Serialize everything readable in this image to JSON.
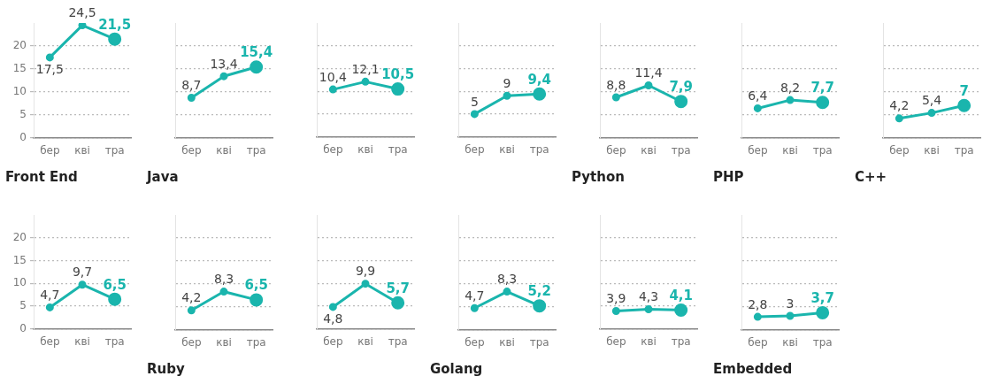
{
  "chart_data": [
    {
      "type": "line",
      "title": "Front End",
      "categories": [
        "бер",
        "кві",
        "тра"
      ],
      "values": [
        17.5,
        24.5,
        21.5
      ],
      "value_labels": [
        "17,5",
        "24,5",
        "21,5"
      ],
      "color": "#1ab5ad",
      "ylim": [
        0,
        25
      ],
      "yticks": [
        0,
        5,
        10,
        15,
        20
      ],
      "grid": "y",
      "marker": "circle",
      "legend": false
    },
    {
      "type": "line",
      "title": "Java",
      "categories": [
        "бер",
        "кві",
        "тра"
      ],
      "values": [
        8.7,
        13.4,
        15.4
      ],
      "value_labels": [
        "8,7",
        "13,4",
        "15,4"
      ],
      "color": "#1ab5ad",
      "ylim": [
        0,
        25
      ],
      "yticks": [
        0,
        5,
        10,
        15,
        20
      ],
      "grid": "y",
      "marker": "circle",
      "legend": false,
      "tick_labels": "x"
    },
    {
      "type": "line",
      "categories": [
        "бер",
        "кві",
        "тра"
      ],
      "values": [
        10.4,
        12.1,
        10.5
      ],
      "value_labels": [
        "10,4",
        "12,1",
        "10,5"
      ],
      "color": "#1ab5ad",
      "ylim": [
        0,
        25
      ],
      "yticks": [
        0,
        5,
        10,
        15,
        20
      ],
      "grid": "y",
      "marker": "circle",
      "legend": false,
      "tick_labels": "x"
    },
    {
      "type": "line",
      "categories": [
        "бер",
        "кві",
        "тра"
      ],
      "values": [
        5,
        9,
        9.4
      ],
      "value_labels": [
        "5",
        "9",
        "9,4"
      ],
      "color": "#1ab5ad",
      "ylim": [
        0,
        25
      ],
      "yticks": [
        0,
        5,
        10,
        15,
        20
      ],
      "grid": "y",
      "marker": "circle",
      "legend": false,
      "tick_labels": "x"
    },
    {
      "type": "line",
      "title": "Python",
      "categories": [
        "бер",
        "кві",
        "тра"
      ],
      "values": [
        8.8,
        11.4,
        7.9
      ],
      "value_labels": [
        "8,8",
        "11,4",
        "7,9"
      ],
      "color": "#1ab5ad",
      "ylim": [
        0,
        25
      ],
      "yticks": [
        0,
        5,
        10,
        15,
        20
      ],
      "grid": "y",
      "marker": "circle",
      "legend": false,
      "tick_labels": "x"
    },
    {
      "type": "line",
      "title": "PHP",
      "categories": [
        "бер",
        "кві",
        "тра"
      ],
      "values": [
        6.4,
        8.2,
        7.7
      ],
      "value_labels": [
        "6,4",
        "8,2",
        "7,7"
      ],
      "color": "#1ab5ad",
      "ylim": [
        0,
        25
      ],
      "yticks": [
        0,
        5,
        10,
        15,
        20
      ],
      "grid": "y",
      "marker": "circle",
      "legend": false,
      "tick_labels": "x"
    },
    {
      "type": "line",
      "title": "C++",
      "categories": [
        "бер",
        "кві",
        "тра"
      ],
      "values": [
        4.2,
        5.4,
        7
      ],
      "value_labels": [
        "4,2",
        "5,4",
        "7"
      ],
      "color": "#1ab5ad",
      "ylim": [
        0,
        25
      ],
      "yticks": [
        0,
        5,
        10,
        15,
        20
      ],
      "grid": "y",
      "marker": "circle",
      "legend": false,
      "tick_labels": "x"
    },
    {
      "type": "line",
      "categories": [
        "бер",
        "кві",
        "тра"
      ],
      "values": [
        4.7,
        9.7,
        6.5
      ],
      "value_labels": [
        "4,7",
        "9,7",
        "6,5"
      ],
      "color": "#1ab5ad",
      "ylim": [
        0,
        25
      ],
      "yticks": [
        0,
        5,
        10,
        15,
        20
      ],
      "grid": "y",
      "marker": "circle",
      "legend": false
    },
    {
      "type": "line",
      "title": "Ruby",
      "categories": [
        "бер",
        "кві",
        "тра"
      ],
      "values": [
        4.2,
        8.3,
        6.5
      ],
      "value_labels": [
        "4,2",
        "8,3",
        "6,5"
      ],
      "color": "#1ab5ad",
      "ylim": [
        0,
        25
      ],
      "yticks": [
        0,
        5,
        10,
        15,
        20
      ],
      "grid": "y",
      "marker": "circle",
      "legend": false,
      "tick_labels": "x"
    },
    {
      "type": "line",
      "categories": [
        "бер",
        "кві",
        "тра"
      ],
      "values": [
        4.8,
        9.9,
        5.7
      ],
      "value_labels": [
        "4,8",
        "9,9",
        "5,7"
      ],
      "color": "#1ab5ad",
      "ylim": [
        0,
        25
      ],
      "yticks": [
        0,
        5,
        10,
        15,
        20
      ],
      "grid": "y",
      "marker": "circle",
      "legend": false,
      "tick_labels": "x"
    },
    {
      "type": "line",
      "title": "Golang",
      "categories": [
        "бер",
        "кві",
        "тра"
      ],
      "values": [
        4.7,
        8.3,
        5.2
      ],
      "value_labels": [
        "4,7",
        "8,3",
        "5,2"
      ],
      "color": "#1ab5ad",
      "ylim": [
        0,
        25
      ],
      "yticks": [
        0,
        5,
        10,
        15,
        20
      ],
      "grid": "y",
      "marker": "circle",
      "legend": false,
      "tick_labels": "x"
    },
    {
      "type": "line",
      "categories": [
        "бер",
        "кві",
        "тра"
      ],
      "values": [
        3.9,
        4.3,
        4.1
      ],
      "value_labels": [
        "3,9",
        "4,3",
        "4,1"
      ],
      "color": "#1ab5ad",
      "ylim": [
        0,
        25
      ],
      "yticks": [
        0,
        5,
        10,
        15,
        20
      ],
      "grid": "y",
      "marker": "circle",
      "legend": false,
      "tick_labels": "x"
    },
    {
      "type": "line",
      "title": "Embedded",
      "categories": [
        "бер",
        "кві",
        "тра"
      ],
      "values": [
        2.8,
        3,
        3.7
      ],
      "value_labels": [
        "2,8",
        "3",
        "3,7"
      ],
      "color": "#1ab5ad",
      "ylim": [
        0,
        25
      ],
      "yticks": [
        0,
        5,
        10,
        15,
        20
      ],
      "grid": "y",
      "marker": "circle",
      "legend": false,
      "tick_labels": "x"
    }
  ]
}
